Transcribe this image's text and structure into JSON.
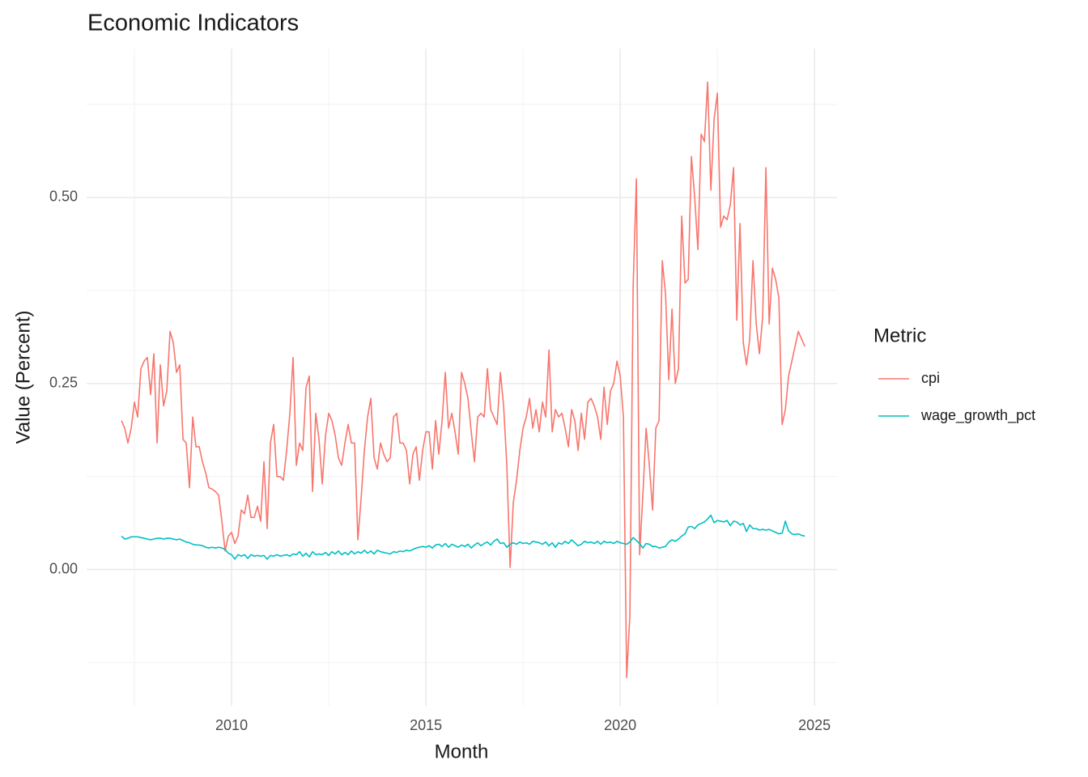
{
  "chart_data": {
    "type": "line",
    "title": "Economic Indicators",
    "x_label": "Month",
    "y_label": "Value (Percent)",
    "legend_title": "Metric",
    "legend_position": "right",
    "grid": true,
    "minor_grid": true,
    "xlim": [
      2006.27,
      2025.58
    ],
    "xticks": [
      2010,
      2015,
      2020,
      2025
    ],
    "ylim": [
      -0.183,
      0.7
    ],
    "yticks": [
      {
        "value": 0,
        "label": "0.00"
      },
      {
        "value": 0.25,
        "label": "0.25"
      },
      {
        "value": 0.5,
        "label": "0.50"
      }
    ],
    "x": [
      2007.167,
      2007.25,
      2007.333,
      2007.417,
      2007.5,
      2007.583,
      2007.667,
      2007.75,
      2007.833,
      2007.917,
      2008,
      2008.083,
      2008.167,
      2008.25,
      2008.333,
      2008.417,
      2008.5,
      2008.583,
      2008.667,
      2008.75,
      2008.833,
      2008.917,
      2009,
      2009.083,
      2009.167,
      2009.25,
      2009.333,
      2009.417,
      2009.5,
      2009.583,
      2009.667,
      2009.75,
      2009.833,
      2009.917,
      2010,
      2010.083,
      2010.167,
      2010.25,
      2010.333,
      2010.417,
      2010.5,
      2010.583,
      2010.667,
      2010.75,
      2010.833,
      2010.917,
      2011,
      2011.083,
      2011.167,
      2011.25,
      2011.333,
      2011.417,
      2011.5,
      2011.583,
      2011.667,
      2011.75,
      2011.833,
      2011.917,
      2012,
      2012.083,
      2012.167,
      2012.25,
      2012.333,
      2012.417,
      2012.5,
      2012.583,
      2012.667,
      2012.75,
      2012.833,
      2012.917,
      2013,
      2013.083,
      2013.167,
      2013.25,
      2013.333,
      2013.417,
      2013.5,
      2013.583,
      2013.667,
      2013.75,
      2013.833,
      2013.917,
      2014,
      2014.083,
      2014.167,
      2014.25,
      2014.333,
      2014.417,
      2014.5,
      2014.583,
      2014.667,
      2014.75,
      2014.833,
      2014.917,
      2015,
      2015.083,
      2015.167,
      2015.25,
      2015.333,
      2015.417,
      2015.5,
      2015.583,
      2015.667,
      2015.75,
      2015.833,
      2015.917,
      2016,
      2016.083,
      2016.167,
      2016.25,
      2016.333,
      2016.417,
      2016.5,
      2016.583,
      2016.667,
      2016.75,
      2016.833,
      2016.917,
      2017,
      2017.083,
      2017.167,
      2017.25,
      2017.333,
      2017.417,
      2017.5,
      2017.583,
      2017.667,
      2017.75,
      2017.833,
      2017.917,
      2018,
      2018.083,
      2018.167,
      2018.25,
      2018.333,
      2018.417,
      2018.5,
      2018.583,
      2018.667,
      2018.75,
      2018.833,
      2018.917,
      2019,
      2019.083,
      2019.167,
      2019.25,
      2019.333,
      2019.417,
      2019.5,
      2019.583,
      2019.667,
      2019.75,
      2019.833,
      2019.917,
      2020,
      2020.083,
      2020.167,
      2020.25,
      2020.333,
      2020.417,
      2020.5,
      2020.583,
      2020.667,
      2020.75,
      2020.833,
      2020.917,
      2021,
      2021.083,
      2021.167,
      2021.25,
      2021.333,
      2021.417,
      2021.5,
      2021.583,
      2021.667,
      2021.75,
      2021.833,
      2021.917,
      2022,
      2022.083,
      2022.167,
      2022.25,
      2022.333,
      2022.417,
      2022.5,
      2022.583,
      2022.667,
      2022.75,
      2022.833,
      2022.917,
      2023,
      2023.083,
      2023.167,
      2023.25,
      2023.333,
      2023.417,
      2023.5,
      2023.583,
      2023.667,
      2023.75,
      2023.833,
      2023.917,
      2024,
      2024.083,
      2024.167,
      2024.25,
      2024.333,
      2024.417,
      2024.5,
      2024.583,
      2024.667,
      2024.75
    ],
    "series": [
      {
        "name": "cpi",
        "color": "#F8766D",
        "values": [
          0.2,
          0.19,
          0.17,
          0.19,
          0.225,
          0.205,
          0.27,
          0.28,
          0.285,
          0.235,
          0.29,
          0.17,
          0.275,
          0.22,
          0.24,
          0.32,
          0.305,
          0.265,
          0.275,
          0.175,
          0.17,
          0.11,
          0.205,
          0.165,
          0.165,
          0.145,
          0.13,
          0.11,
          0.108,
          0.105,
          0.1,
          0.065,
          0.025,
          0.045,
          0.05,
          0.035,
          0.045,
          0.08,
          0.075,
          0.1,
          0.07,
          0.07,
          0.085,
          0.065,
          0.145,
          0.055,
          0.17,
          0.195,
          0.125,
          0.125,
          0.12,
          0.16,
          0.21,
          0.285,
          0.14,
          0.17,
          0.16,
          0.245,
          0.26,
          0.105,
          0.21,
          0.175,
          0.115,
          0.18,
          0.21,
          0.2,
          0.18,
          0.15,
          0.14,
          0.17,
          0.195,
          0.17,
          0.17,
          0.04,
          0.095,
          0.16,
          0.205,
          0.23,
          0.15,
          0.135,
          0.17,
          0.155,
          0.145,
          0.15,
          0.205,
          0.21,
          0.17,
          0.17,
          0.16,
          0.115,
          0.155,
          0.165,
          0.12,
          0.16,
          0.185,
          0.185,
          0.135,
          0.2,
          0.155,
          0.2,
          0.265,
          0.19,
          0.21,
          0.185,
          0.155,
          0.265,
          0.25,
          0.23,
          0.185,
          0.145,
          0.205,
          0.21,
          0.205,
          0.27,
          0.215,
          0.205,
          0.195,
          0.265,
          0.22,
          0.14,
          0.003,
          0.09,
          0.12,
          0.16,
          0.19,
          0.205,
          0.23,
          0.19,
          0.215,
          0.185,
          0.225,
          0.205,
          0.295,
          0.185,
          0.215,
          0.205,
          0.21,
          0.19,
          0.165,
          0.215,
          0.2,
          0.16,
          0.21,
          0.175,
          0.225,
          0.23,
          0.22,
          0.205,
          0.175,
          0.245,
          0.195,
          0.24,
          0.25,
          0.28,
          0.26,
          0.205,
          -0.145,
          -0.06,
          0.38,
          0.525,
          0.02,
          0.1,
          0.19,
          0.14,
          0.08,
          0.19,
          0.2,
          0.415,
          0.37,
          0.255,
          0.35,
          0.25,
          0.27,
          0.475,
          0.385,
          0.39,
          0.555,
          0.5,
          0.43,
          0.585,
          0.575,
          0.655,
          0.51,
          0.605,
          0.64,
          0.46,
          0.475,
          0.47,
          0.49,
          0.54,
          0.335,
          0.465,
          0.305,
          0.275,
          0.31,
          0.415,
          0.33,
          0.29,
          0.34,
          0.54,
          0.33,
          0.405,
          0.39,
          0.365,
          0.195,
          0.215,
          0.26,
          0.28,
          0.3,
          0.32,
          0.31,
          0.3
        ]
      },
      {
        "name": "wage_growth_pct",
        "color": "#00BFC4",
        "values": [
          0.045,
          0.041,
          0.042,
          0.044,
          0.044,
          0.044,
          0.043,
          0.042,
          0.041,
          0.04,
          0.041,
          0.042,
          0.042,
          0.041,
          0.042,
          0.042,
          0.041,
          0.04,
          0.041,
          0.039,
          0.037,
          0.036,
          0.034,
          0.033,
          0.033,
          0.032,
          0.03,
          0.029,
          0.03,
          0.029,
          0.03,
          0.029,
          0.027,
          0.022,
          0.02,
          0.014,
          0.02,
          0.018,
          0.02,
          0.015,
          0.02,
          0.018,
          0.019,
          0.018,
          0.019,
          0.014,
          0.019,
          0.018,
          0.02,
          0.018,
          0.019,
          0.02,
          0.018,
          0.021,
          0.02,
          0.024,
          0.018,
          0.022,
          0.017,
          0.024,
          0.02,
          0.021,
          0.02,
          0.023,
          0.019,
          0.024,
          0.021,
          0.025,
          0.02,
          0.023,
          0.02,
          0.025,
          0.021,
          0.024,
          0.022,
          0.026,
          0.022,
          0.025,
          0.021,
          0.026,
          0.024,
          0.023,
          0.022,
          0.021,
          0.024,
          0.023,
          0.025,
          0.024,
          0.026,
          0.025,
          0.027,
          0.029,
          0.03,
          0.031,
          0.03,
          0.032,
          0.029,
          0.033,
          0.034,
          0.031,
          0.035,
          0.03,
          0.034,
          0.032,
          0.03,
          0.033,
          0.031,
          0.034,
          0.029,
          0.033,
          0.036,
          0.032,
          0.035,
          0.037,
          0.033,
          0.038,
          0.041,
          0.035,
          0.036,
          0.03,
          0.034,
          0.036,
          0.034,
          0.037,
          0.035,
          0.036,
          0.034,
          0.038,
          0.037,
          0.036,
          0.034,
          0.037,
          0.032,
          0.036,
          0.03,
          0.036,
          0.034,
          0.038,
          0.035,
          0.04,
          0.036,
          0.032,
          0.034,
          0.038,
          0.036,
          0.037,
          0.035,
          0.038,
          0.034,
          0.038,
          0.036,
          0.037,
          0.035,
          0.038,
          0.036,
          0.035,
          0.034,
          0.037,
          0.043,
          0.039,
          0.035,
          0.029,
          0.035,
          0.034,
          0.031,
          0.031,
          0.029,
          0.03,
          0.031,
          0.037,
          0.04,
          0.038,
          0.041,
          0.045,
          0.048,
          0.057,
          0.058,
          0.055,
          0.06,
          0.062,
          0.064,
          0.068,
          0.073,
          0.063,
          0.066,
          0.065,
          0.064,
          0.066,
          0.059,
          0.065,
          0.064,
          0.06,
          0.062,
          0.051,
          0.06,
          0.055,
          0.055,
          0.053,
          0.054,
          0.053,
          0.054,
          0.052,
          0.05,
          0.048,
          0.049,
          0.065,
          0.052,
          0.048,
          0.047,
          0.048,
          0.046,
          0.045
        ]
      }
    ]
  }
}
